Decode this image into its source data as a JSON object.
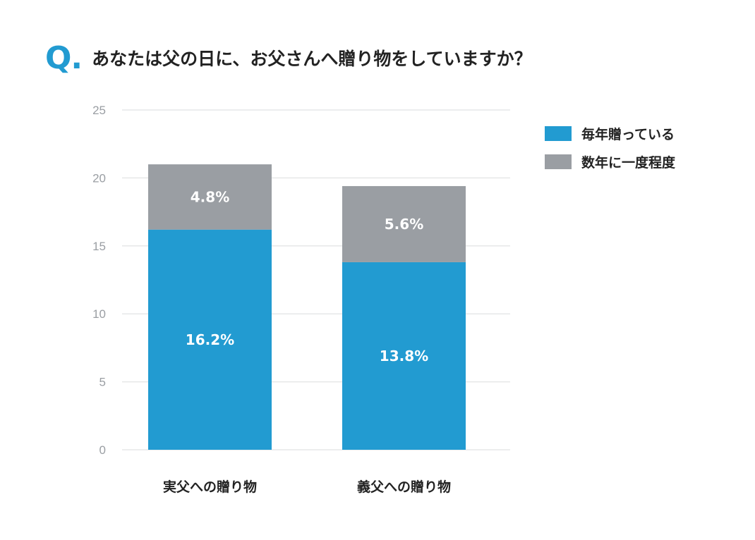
{
  "title": {
    "prefix": "Q.",
    "text": "あなたは父の日に、お父さんへ贈り物をしていますか？"
  },
  "colors": {
    "accent": "#229bd1",
    "series_1": "#229bd1",
    "series_2": "#9a9ea3",
    "gridline": "#e6e7e8",
    "text": "#222222"
  },
  "legend": [
    {
      "label": "毎年贈っている",
      "color": "#229bd1"
    },
    {
      "label": "数年に一度程度",
      "color": "#9a9ea3"
    }
  ],
  "chart_data": {
    "type": "bar",
    "stacked": true,
    "title": "あなたは父の日に、お父さんへ贈り物をしていますか？",
    "categories": [
      "実父への贈り物",
      "義父への贈り物"
    ],
    "series": [
      {
        "name": "毎年贈っている",
        "values": [
          16.2,
          13.8
        ],
        "labels": [
          "16.2%",
          "13.8%"
        ],
        "color": "#229bd1"
      },
      {
        "name": "数年に一度程度",
        "values": [
          4.8,
          5.6
        ],
        "labels": [
          "4.8%",
          "5.6%"
        ],
        "color": "#9a9ea3"
      }
    ],
    "xlabel": "",
    "ylabel": "",
    "ylim": [
      0,
      25
    ],
    "yticks": [
      0,
      5,
      10,
      15,
      20,
      25
    ],
    "grid": true,
    "legend_position": "right"
  }
}
